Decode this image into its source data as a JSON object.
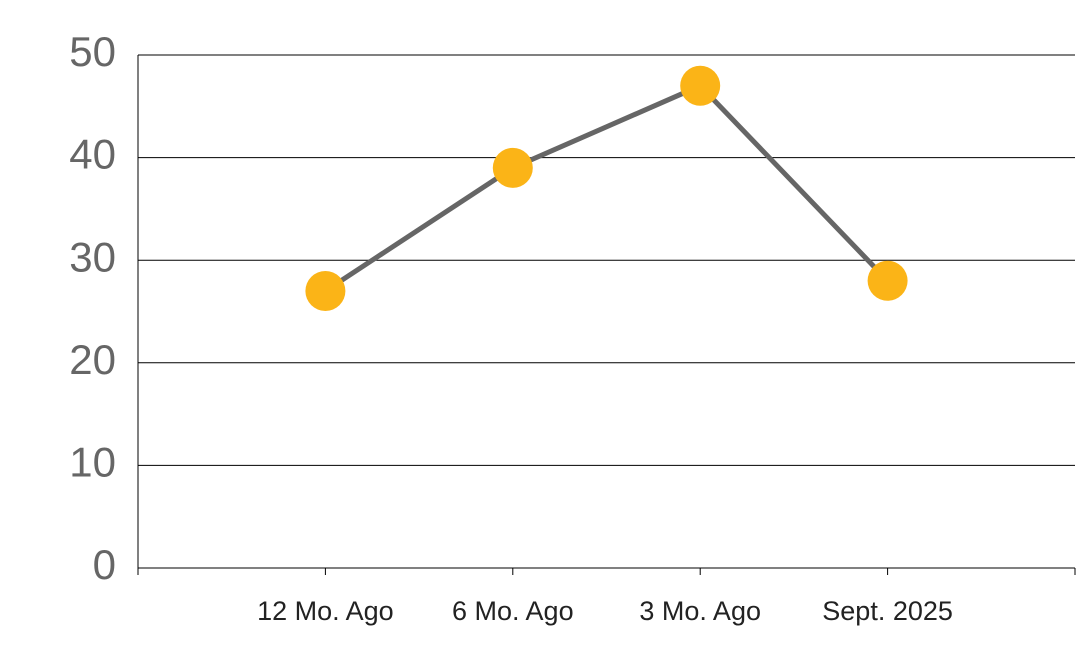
{
  "chart_data": {
    "type": "line",
    "categories": [
      "12 Mo. Ago",
      "6 Mo. Ago",
      "3 Mo. Ago",
      "Sept. 2025"
    ],
    "values": [
      27,
      39,
      47,
      28
    ],
    "color": "#666666",
    "marker_color": "#fbb417",
    "ylim": [
      0,
      50
    ],
    "yticks": [
      0,
      10,
      20,
      30,
      40,
      50
    ],
    "grid": true
  }
}
